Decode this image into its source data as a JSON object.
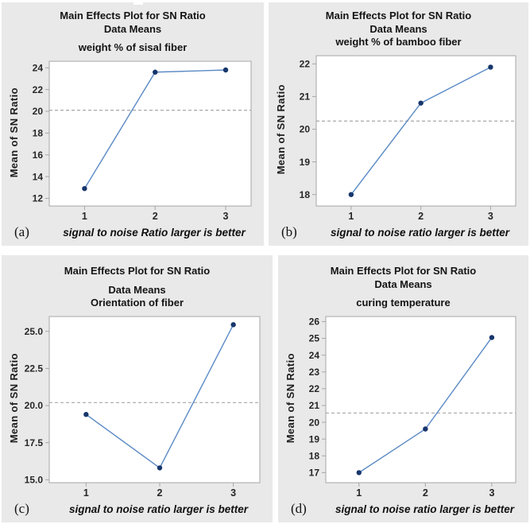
{
  "figure": {
    "description": "Main effects plots for SN Ratio (Taguchi analysis), four factors"
  },
  "palette": {
    "panel_bg": "#e9e9e9",
    "plot_bg": "#ffffff",
    "plot_border": "#a6a6a6",
    "line": "#5b8ac5",
    "marker": "#17366b",
    "dashed": "#a8a8a8",
    "text": "#141414",
    "tick_text": "#262626"
  },
  "chart_data": [
    {
      "type": "line",
      "title": "Main Effects Plot for SN Ratio",
      "subtitle": "Data Means",
      "factor": "weight % of sisal fiber",
      "ylabel": "Mean of SN Ratio",
      "xcaption": "signal to noise Ratio larger is better",
      "letter": "(a)",
      "x": [
        1,
        2,
        3
      ],
      "values": [
        12.9,
        23.6,
        23.8
      ],
      "mean_line": 20.1,
      "ytick_values": [
        12,
        14,
        16,
        18,
        20,
        22,
        24
      ],
      "ytick_labels": [
        "12",
        "14",
        "16",
        "18",
        "20",
        "22",
        "24"
      ],
      "xtick_labels": [
        "1",
        "2",
        "3"
      ],
      "ylim": [
        11.3,
        24.6
      ],
      "xlim": [
        0.5,
        3.36
      ],
      "grid": "mean reference line only, dashed"
    },
    {
      "type": "line",
      "title": "Main Effects Plot for SN Ratio",
      "subtitle": "Data Means",
      "factor": "weight % of bamboo fiber",
      "ylabel": "Mean of SN Ratio",
      "xcaption": "signal to noise ratio larger is better",
      "letter": "(b)",
      "x": [
        1,
        2,
        3
      ],
      "values": [
        18.0,
        20.8,
        21.9
      ],
      "mean_line": 20.25,
      "ytick_values": [
        18,
        19,
        20,
        21,
        22
      ],
      "ytick_labels": [
        "18",
        "19",
        "20",
        "21",
        "22"
      ],
      "xtick_labels": [
        "1",
        "2",
        "3"
      ],
      "ylim": [
        17.65,
        22.25
      ],
      "xlim": [
        0.5,
        3.36
      ],
      "grid": "mean reference line only, dashed"
    },
    {
      "type": "line",
      "title": "Main Effects Plot for SN Ratio",
      "subtitle": "Data Means",
      "factor": "Orientation of fiber",
      "ylabel": "Mean of SN Ratio",
      "xcaption": "signal to noise ratio larger is better",
      "letter": "(c)",
      "x": [
        1,
        2,
        3
      ],
      "values": [
        19.4,
        15.8,
        25.45
      ],
      "mean_line": 20.2,
      "ytick_values": [
        15.0,
        17.5,
        20.0,
        22.5,
        25.0
      ],
      "ytick_labels": [
        "15.0",
        "17.5",
        "20.0",
        "22.5",
        "25.0"
      ],
      "xtick_labels": [
        "1",
        "2",
        "3"
      ],
      "ylim": [
        14.8,
        26.0
      ],
      "xlim": [
        0.5,
        3.36
      ],
      "grid": "mean reference line only, dashed"
    },
    {
      "type": "line",
      "title": "Main Effects Plot for SN Ratio",
      "subtitle": "Data Means",
      "factor": "curing temperature",
      "ylabel": "Mean of SN Ratio",
      "xcaption": "signal to noise ratio larger is better",
      "letter": "(d)",
      "x": [
        1,
        2,
        3
      ],
      "values": [
        17.0,
        19.6,
        25.05
      ],
      "mean_line": 20.55,
      "ytick_values": [
        17,
        18,
        19,
        20,
        21,
        22,
        23,
        24,
        25,
        26
      ],
      "ytick_labels": [
        "17",
        "18",
        "19",
        "20",
        "21",
        "22",
        "23",
        "24",
        "25",
        "26"
      ],
      "xtick_labels": [
        "1",
        "2",
        "3"
      ],
      "ylim": [
        16.4,
        26.3
      ],
      "xlim": [
        0.5,
        3.36
      ],
      "grid": "mean reference line only, dashed"
    }
  ]
}
